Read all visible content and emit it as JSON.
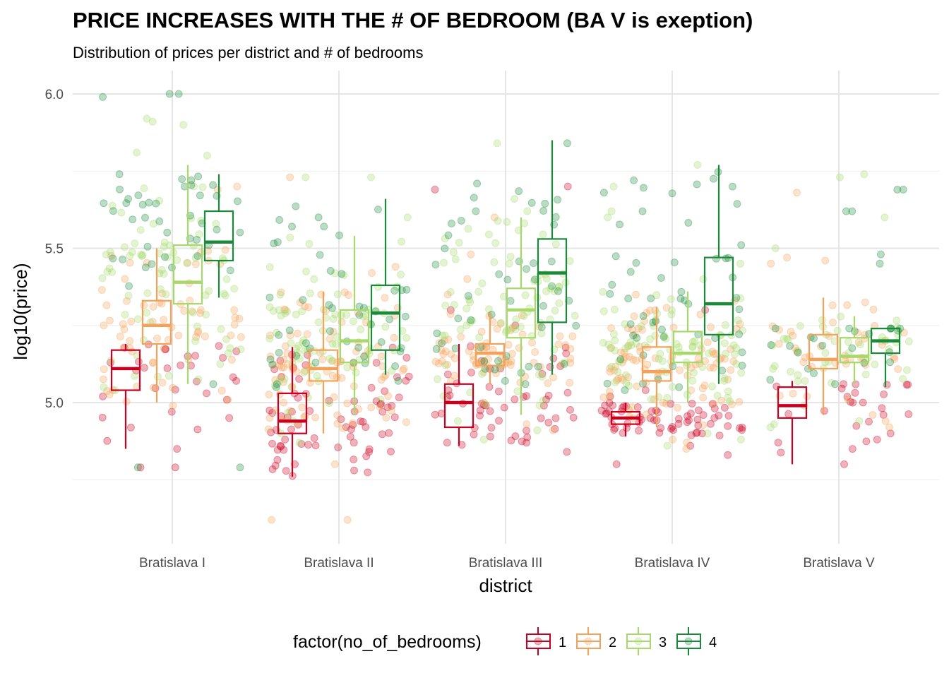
{
  "chart_data": {
    "type": "boxplot",
    "title": "PRICE INCREASES WITH THE # OF BEDROOM (BA V is exeption)",
    "subtitle": "Distribution of prices per district and # of bedrooms",
    "xlabel": "district",
    "ylabel": "log10(price)",
    "ylim": [
      4.55,
      6.05
    ],
    "y_ticks": [
      5.0,
      5.5,
      6.0
    ],
    "y_tick_labels": [
      "5.0",
      "5.5",
      "6.0"
    ],
    "grid": true,
    "legend_position": "bottom",
    "legend_title": "factor(no_of_bedrooms)",
    "categories": [
      "Bratislava I",
      "Bratislava II",
      "Bratislava III",
      "Bratislava IV",
      "Bratislava V"
    ],
    "series": [
      {
        "name": "1",
        "color": "#ca0020",
        "boxes": [
          {
            "lower_whisker": 4.85,
            "q1": 5.04,
            "median": 5.11,
            "q3": 5.17,
            "upper_whisker": 5.19
          },
          {
            "lower_whisker": 4.76,
            "q1": 4.9,
            "median": 4.94,
            "q3": 5.03,
            "upper_whisker": 5.18
          },
          {
            "lower_whisker": 4.86,
            "q1": 4.92,
            "median": 5.0,
            "q3": 5.06,
            "upper_whisker": 5.19
          },
          {
            "lower_whisker": 4.89,
            "q1": 4.93,
            "median": 4.95,
            "q3": 4.97,
            "upper_whisker": 5.0
          },
          {
            "lower_whisker": 4.8,
            "q1": 4.95,
            "median": 4.99,
            "q3": 5.05,
            "upper_whisker": 5.07
          }
        ]
      },
      {
        "name": "2",
        "color": "#f4a259",
        "boxes": [
          {
            "lower_whisker": 5.0,
            "q1": 5.19,
            "median": 5.25,
            "q3": 5.33,
            "upper_whisker": 5.5
          },
          {
            "lower_whisker": 4.9,
            "q1": 5.07,
            "median": 5.11,
            "q3": 5.17,
            "upper_whisker": 5.36
          },
          {
            "lower_whisker": 5.06,
            "q1": 5.12,
            "median": 5.16,
            "q3": 5.19,
            "upper_whisker": 5.29
          },
          {
            "lower_whisker": 4.92,
            "q1": 5.07,
            "median": 5.1,
            "q3": 5.18,
            "upper_whisker": 5.31
          },
          {
            "lower_whisker": 4.96,
            "q1": 5.11,
            "median": 5.14,
            "q3": 5.22,
            "upper_whisker": 5.34
          }
        ]
      },
      {
        "name": "3",
        "color": "#a6d96a",
        "boxes": [
          {
            "lower_whisker": 5.06,
            "q1": 5.32,
            "median": 5.39,
            "q3": 5.51,
            "upper_whisker": 5.77
          },
          {
            "lower_whisker": 4.96,
            "q1": 5.13,
            "median": 5.2,
            "q3": 5.3,
            "upper_whisker": 5.54
          },
          {
            "lower_whisker": 4.96,
            "q1": 5.21,
            "median": 5.3,
            "q3": 5.37,
            "upper_whisker": 5.6
          },
          {
            "lower_whisker": 5.0,
            "q1": 5.13,
            "median": 5.16,
            "q3": 5.23,
            "upper_whisker": 5.36
          },
          {
            "lower_whisker": 5.06,
            "q1": 5.13,
            "median": 5.15,
            "q3": 5.21,
            "upper_whisker": 5.28
          }
        ]
      },
      {
        "name": "4",
        "color": "#1a8a3a",
        "boxes": [
          {
            "lower_whisker": 5.34,
            "q1": 5.46,
            "median": 5.52,
            "q3": 5.62,
            "upper_whisker": 5.74
          },
          {
            "lower_whisker": 5.09,
            "q1": 5.17,
            "median": 5.29,
            "q3": 5.38,
            "upper_whisker": 5.66
          },
          {
            "lower_whisker": 5.09,
            "q1": 5.26,
            "median": 5.42,
            "q3": 5.53,
            "upper_whisker": 5.85
          },
          {
            "lower_whisker": 5.06,
            "q1": 5.22,
            "median": 5.32,
            "q3": 5.47,
            "upper_whisker": 5.77
          },
          {
            "lower_whisker": 5.05,
            "q1": 5.16,
            "median": 5.2,
            "q3": 5.24,
            "upper_whisker": 5.24
          }
        ]
      }
    ],
    "jitter_points": {
      "seed": 7,
      "counts": [
        [
          26,
          68,
          70,
          38
        ],
        [
          68,
          95,
          80,
          42
        ],
        [
          52,
          72,
          80,
          46
        ],
        [
          62,
          92,
          82,
          48
        ],
        [
          22,
          42,
          40,
          22
        ]
      ],
      "outliers": [
        [
          [
            4.79,
            4.79,
            4.85,
            4.95,
            4.97,
            5.02,
            5.07
          ],
          [
            4.99,
            5.04,
            5.7,
            5.69
          ],
          [
            5.04,
            5.05,
            5.8,
            5.81,
            5.9,
            5.91,
            5.92,
            5.7
          ],
          [
            6.0,
            6.0,
            5.99,
            4.79,
            4.79,
            5.72,
            5.7,
            5.06
          ]
        ],
        [
          [
            4.78,
            4.8,
            4.86,
            4.87,
            4.88,
            4.97,
            4.97
          ],
          [
            4.62,
            4.62,
            4.8,
            5.42,
            5.44,
            5.73
          ],
          [
            4.87,
            4.9,
            4.94,
            5.73,
            5.73,
            5.6
          ],
          [
            5.05,
            5.06,
            5.07,
            5.57,
            5.57,
            5.6
          ]
        ],
        [
          [
            4.84,
            4.87,
            4.89,
            5.25,
            5.3,
            5.69,
            5.7
          ],
          [
            4.91,
            4.93,
            5.0,
            5.35,
            5.4,
            5.48,
            5.6
          ],
          [
            4.88,
            4.91,
            4.94,
            5.66,
            5.62,
            5.84
          ],
          [
            5.06,
            5.07,
            5.58,
            5.62
          ]
        ],
        [
          [
            4.8,
            4.83,
            4.86,
            5.02,
            5.04,
            5.3
          ],
          [
            4.85,
            4.87,
            4.88,
            5.33,
            5.35
          ],
          [
            4.86,
            4.88,
            4.9,
            5.4,
            5.45,
            5.6,
            5.62,
            5.7,
            5.77
          ],
          [
            5.04,
            5.05,
            5.7,
            5.72,
            5.68,
            5.62
          ]
        ],
        [
          [
            4.8,
            4.85,
            4.88,
            4.9,
            5.0
          ],
          [
            4.92,
            4.94,
            4.96,
            5.45,
            5.46,
            5.47,
            5.68
          ],
          [
            4.92,
            4.93,
            4.94,
            5.5,
            5.6,
            5.73,
            5.74
          ],
          [
            5.06,
            5.45,
            5.48,
            5.62,
            5.62,
            5.69,
            5.69
          ]
        ]
      ]
    }
  }
}
